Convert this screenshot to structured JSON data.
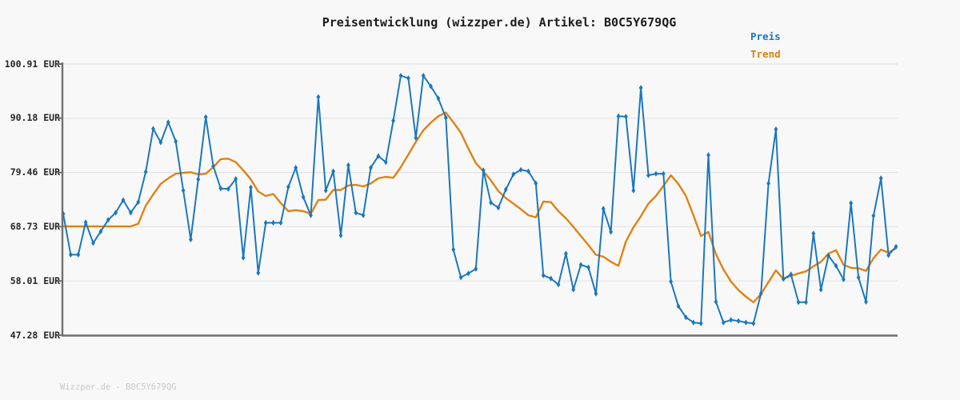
{
  "header": {
    "title": "Preisentwicklung (wizzper.de) Artikel: B0C5Y679QG"
  },
  "footer": {
    "text": "Wizzper.de - B0C5Y679QG"
  },
  "colors": {
    "background": "#f8f8f8",
    "axis": "#6f6f6f",
    "grid": "#e4e4e4",
    "price": "#1b78be",
    "trend": "#e08214"
  },
  "legend": [
    {
      "label": "Preis",
      "color": "#1778be"
    },
    {
      "label": "Trend",
      "color": "#d8820f"
    }
  ],
  "chart_data": {
    "type": "line",
    "title": "Preisentwicklung (wizzper.de) Artikel: B0C5Y679QG",
    "xlabel": "",
    "ylabel": "EUR",
    "ylim": [
      47.28,
      100.91
    ],
    "grid": true,
    "legend_position": "top-right",
    "x_tick_labels": [],
    "y_ticks": [
      "100.91 EUR",
      "90.18 EUR",
      "79.46 EUR",
      "68.73 EUR",
      "58.01 EUR",
      "47.28 EUR"
    ],
    "y_tick_values": [
      100.91,
      90.18,
      79.46,
      68.73,
      58.01,
      47.28
    ],
    "series": [
      {
        "name": "Preis",
        "color": "#1b78be",
        "marker": "diamond",
        "values": [
          71.3,
          63.2,
          63.2,
          69.6,
          65.5,
          67.8,
          70.1,
          71.5,
          74.0,
          71.5,
          73.6,
          79.6,
          88.1,
          85.4,
          89.4,
          85.6,
          75.9,
          66.2,
          78.1,
          90.4,
          80.7,
          76.3,
          76.2,
          78.2,
          62.6,
          76.5,
          59.6,
          69.5,
          69.5,
          69.5,
          76.6,
          80.4,
          74.6,
          71.0,
          94.4,
          75.9,
          79.7,
          67.0,
          80.9,
          71.5,
          71.0,
          80.4,
          82.7,
          81.5,
          89.7,
          98.6,
          98.1,
          86.3,
          98.6,
          96.5,
          94.1,
          90.3,
          64.2,
          58.7,
          59.5,
          60.4,
          79.9,
          73.5,
          72.5,
          76.1,
          79.1,
          80.0,
          79.7,
          77.3,
          59.1,
          58.5,
          57.3,
          63.4,
          56.3,
          61.2,
          60.7,
          55.5,
          72.3,
          67.7,
          90.6,
          90.5,
          75.9,
          96.2,
          78.9,
          79.2,
          79.2,
          57.9,
          53.0,
          50.8,
          49.8,
          49.6,
          82.9,
          53.9,
          49.8,
          50.3,
          50.1,
          49.8,
          49.6,
          55.5,
          77.3,
          88.0,
          58.4,
          59.3,
          53.8,
          53.8,
          67.4,
          56.3,
          63.0,
          61.0,
          58.3,
          73.4,
          58.7,
          53.9,
          70.9,
          78.3,
          63.1,
          64.8
        ]
      },
      {
        "name": "Trend",
        "color": "#e08214",
        "marker": "none",
        "values": [
          68.8,
          68.8,
          68.8,
          68.8,
          68.8,
          68.8,
          68.8,
          68.8,
          68.8,
          68.8,
          69.3,
          72.9,
          75.1,
          77.2,
          78.3,
          79.2,
          79.4,
          79.5,
          79.1,
          79.2,
          80.5,
          82.1,
          82.2,
          81.5,
          79.9,
          78.1,
          75.7,
          74.8,
          75.2,
          73.4,
          71.8,
          72.0,
          71.8,
          71.3,
          74.0,
          74.1,
          76.0,
          76.0,
          76.9,
          77.0,
          76.7,
          77.3,
          78.3,
          78.6,
          78.4,
          80.5,
          83.0,
          85.5,
          87.8,
          89.3,
          90.6,
          91.3,
          89.4,
          87.3,
          84.2,
          81.3,
          79.7,
          77.9,
          75.8,
          74.4,
          73.3,
          72.2,
          71.0,
          70.6,
          73.7,
          73.6,
          71.8,
          70.4,
          68.7,
          66.9,
          65.1,
          63.2,
          62.8,
          61.8,
          61.0,
          65.8,
          68.6,
          70.8,
          73.3,
          74.8,
          76.8,
          78.9,
          77.2,
          74.8,
          71.0,
          66.9,
          67.7,
          63.3,
          60.3,
          57.9,
          56.2,
          54.9,
          53.8,
          55.4,
          57.8,
          60.1,
          58.4,
          59.0,
          59.5,
          59.9,
          60.9,
          61.8,
          63.4,
          64.1,
          61.2,
          60.6,
          60.5,
          60.0,
          62.5,
          64.2,
          63.6,
          64.5
        ]
      }
    ]
  }
}
